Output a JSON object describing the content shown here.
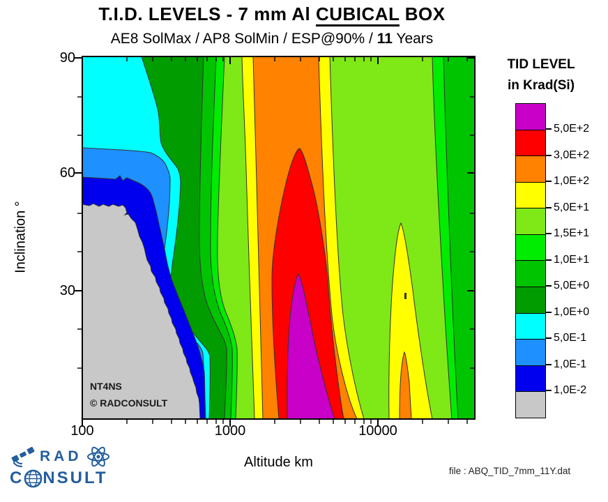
{
  "title": {
    "part1": "T.I.D. LEVELS - 7 mm Al ",
    "underlined": "CUBICAL",
    "part3": " BOX"
  },
  "subtitle": {
    "part1": "AE8 SolMax / AP8 SolMin / ESP@90% / ",
    "bold": "11",
    "part3": " Years"
  },
  "axes": {
    "x": {
      "label": "Altitude km",
      "scale": "log",
      "ticks": [
        "100",
        "1000",
        "10000"
      ]
    },
    "y": {
      "label": "Inclination °",
      "ticks": [
        "90",
        "60",
        "30"
      ]
    }
  },
  "legend": {
    "title_line1": "TID LEVEL",
    "title_line2": "in Krad(Si)",
    "bands": [
      {
        "color": "#C800C8",
        "name": "magenta"
      },
      {
        "color": "#FF0000",
        "name": "red"
      },
      {
        "color": "#FF8200",
        "name": "orange"
      },
      {
        "color": "#FFFF00",
        "name": "yellow"
      },
      {
        "color": "#7FE817",
        "name": "yellow-green"
      },
      {
        "color": "#00EC00",
        "name": "bright-green"
      },
      {
        "color": "#00C400",
        "name": "medium-green"
      },
      {
        "color": "#009C00",
        "name": "dark-green"
      },
      {
        "color": "#00FFFF",
        "name": "cyan"
      },
      {
        "color": "#1E90FF",
        "name": "dodger-blue"
      },
      {
        "color": "#0000EE",
        "name": "blue"
      },
      {
        "color": "#C8C8C8",
        "name": "gray"
      }
    ],
    "thresholds": [
      "5,0E+2",
      "3,0E+2",
      "1,0E+2",
      "5,0E+1",
      "1,5E+1",
      "1,0E+1",
      "5,0E+0",
      "1,0E+0",
      "5,0E-1",
      "1,0E-1",
      "1,0E-2"
    ]
  },
  "colors": {
    "magenta": "#C800C8",
    "red": "#FF0000",
    "orange": "#FF8200",
    "yellow": "#FFFF00",
    "lime": "#7FE817",
    "green_bright": "#00EC00",
    "green_mid": "#00C400",
    "green_dark": "#009C00",
    "cyan": "#00FFFF",
    "blue_mid": "#1E90FF",
    "blue": "#0000EE",
    "gray": "#C8C8C8",
    "contour_line": "#333333",
    "artifact": "#303030"
  },
  "plot_annotations": {
    "code": "NT4NS",
    "copyright": "©  RADCONSULT"
  },
  "footer": {
    "file_label": "file : ABQ_TID_7mm_11Y.dat"
  },
  "logo": {
    "rad": "RAD",
    "c": "C",
    "nsult": "NSULT",
    "color": "#235E9E"
  },
  "chart_data": {
    "type": "heatmap",
    "subtype": "filled-contour-map",
    "title": "T.I.D. LEVELS - 7 mm Al CUBICAL BOX",
    "subtitle": "AE8 SolMax / AP8 SolMin / ESP@90% / 11 Years",
    "xlabel": "Altitude km",
    "x_scale": "log",
    "x_range_km": [
      100,
      45000
    ],
    "x_major_ticks_km": [
      100,
      1000,
      10000
    ],
    "ylabel": "Inclination °",
    "y_range_deg": [
      0,
      90
    ],
    "y_major_ticks_deg": [
      30,
      60,
      90
    ],
    "value_unit": "Krad(Si)",
    "contour_levels_krad": [
      0.01,
      0.1,
      0.5,
      1.0,
      5.0,
      10.0,
      15.0,
      50.0,
      100.0,
      300.0,
      500.0
    ],
    "contour_level_labels": [
      "1,0E-2",
      "1,0E-1",
      "5,0E-1",
      "1,0E+0",
      "5,0E+0",
      "1,0E+1",
      "1,5E+1",
      "5,0E+1",
      "1,0E+2",
      "3,0E+2",
      "5,0E+2"
    ],
    "bands_low_to_high": [
      {
        "range_krad": "< 0.01",
        "color": "#C8C8C8"
      },
      {
        "range_krad": "0.01 - 0.1",
        "color": "#0000EE"
      },
      {
        "range_krad": "0.1 - 0.5",
        "color": "#1E90FF"
      },
      {
        "range_krad": "0.5 - 1",
        "color": "#00FFFF"
      },
      {
        "range_krad": "1 - 5",
        "color": "#009C00"
      },
      {
        "range_krad": "5 - 10",
        "color": "#00C400"
      },
      {
        "range_krad": "10 - 15",
        "color": "#00EC00"
      },
      {
        "range_krad": "15 - 50",
        "color": "#7FE817"
      },
      {
        "range_krad": "50 - 100",
        "color": "#FFFF00"
      },
      {
        "range_krad": "100 - 300",
        "color": "#FF8200"
      },
      {
        "range_krad": "300 - 500",
        "color": "#FF0000"
      },
      {
        "range_krad": "> 500",
        "color": "#C800C8"
      }
    ],
    "features": [
      {
        "name": "low-dose region",
        "value_krad": "< 0.01",
        "location": "altitude below ~600 km at inclinations below ~55 deg (gray area, bottom-left)"
      },
      {
        "name": "inner proton belt maximum",
        "value_krad": "> 500",
        "location": "magenta core centered near 3000 km altitude, inclination < ~35 deg; red > 300 krad lobe peaks near 3000 km up to ~67 deg"
      },
      {
        "name": "inner belt high-dose column",
        "value_krad": "100 - 300",
        "location": "orange vertical band roughly 1800 - 6000 km at all inclinations"
      },
      {
        "name": "outer electron belt secondary maximum",
        "value_krad": "50 - 300",
        "location": "yellow lobe ~13000 - 22000 km below ~50 deg with small orange core near 16000 km at low inclination"
      },
      {
        "name": "high-altitude plateau",
        "value_krad": "15 - 50",
        "location": "broad yellow-green region right of the inner belt, decreasing to 5-15 krad green bands at far right edge"
      }
    ],
    "annotations": [
      "NT4NS",
      "© RADCONSULT"
    ]
  }
}
